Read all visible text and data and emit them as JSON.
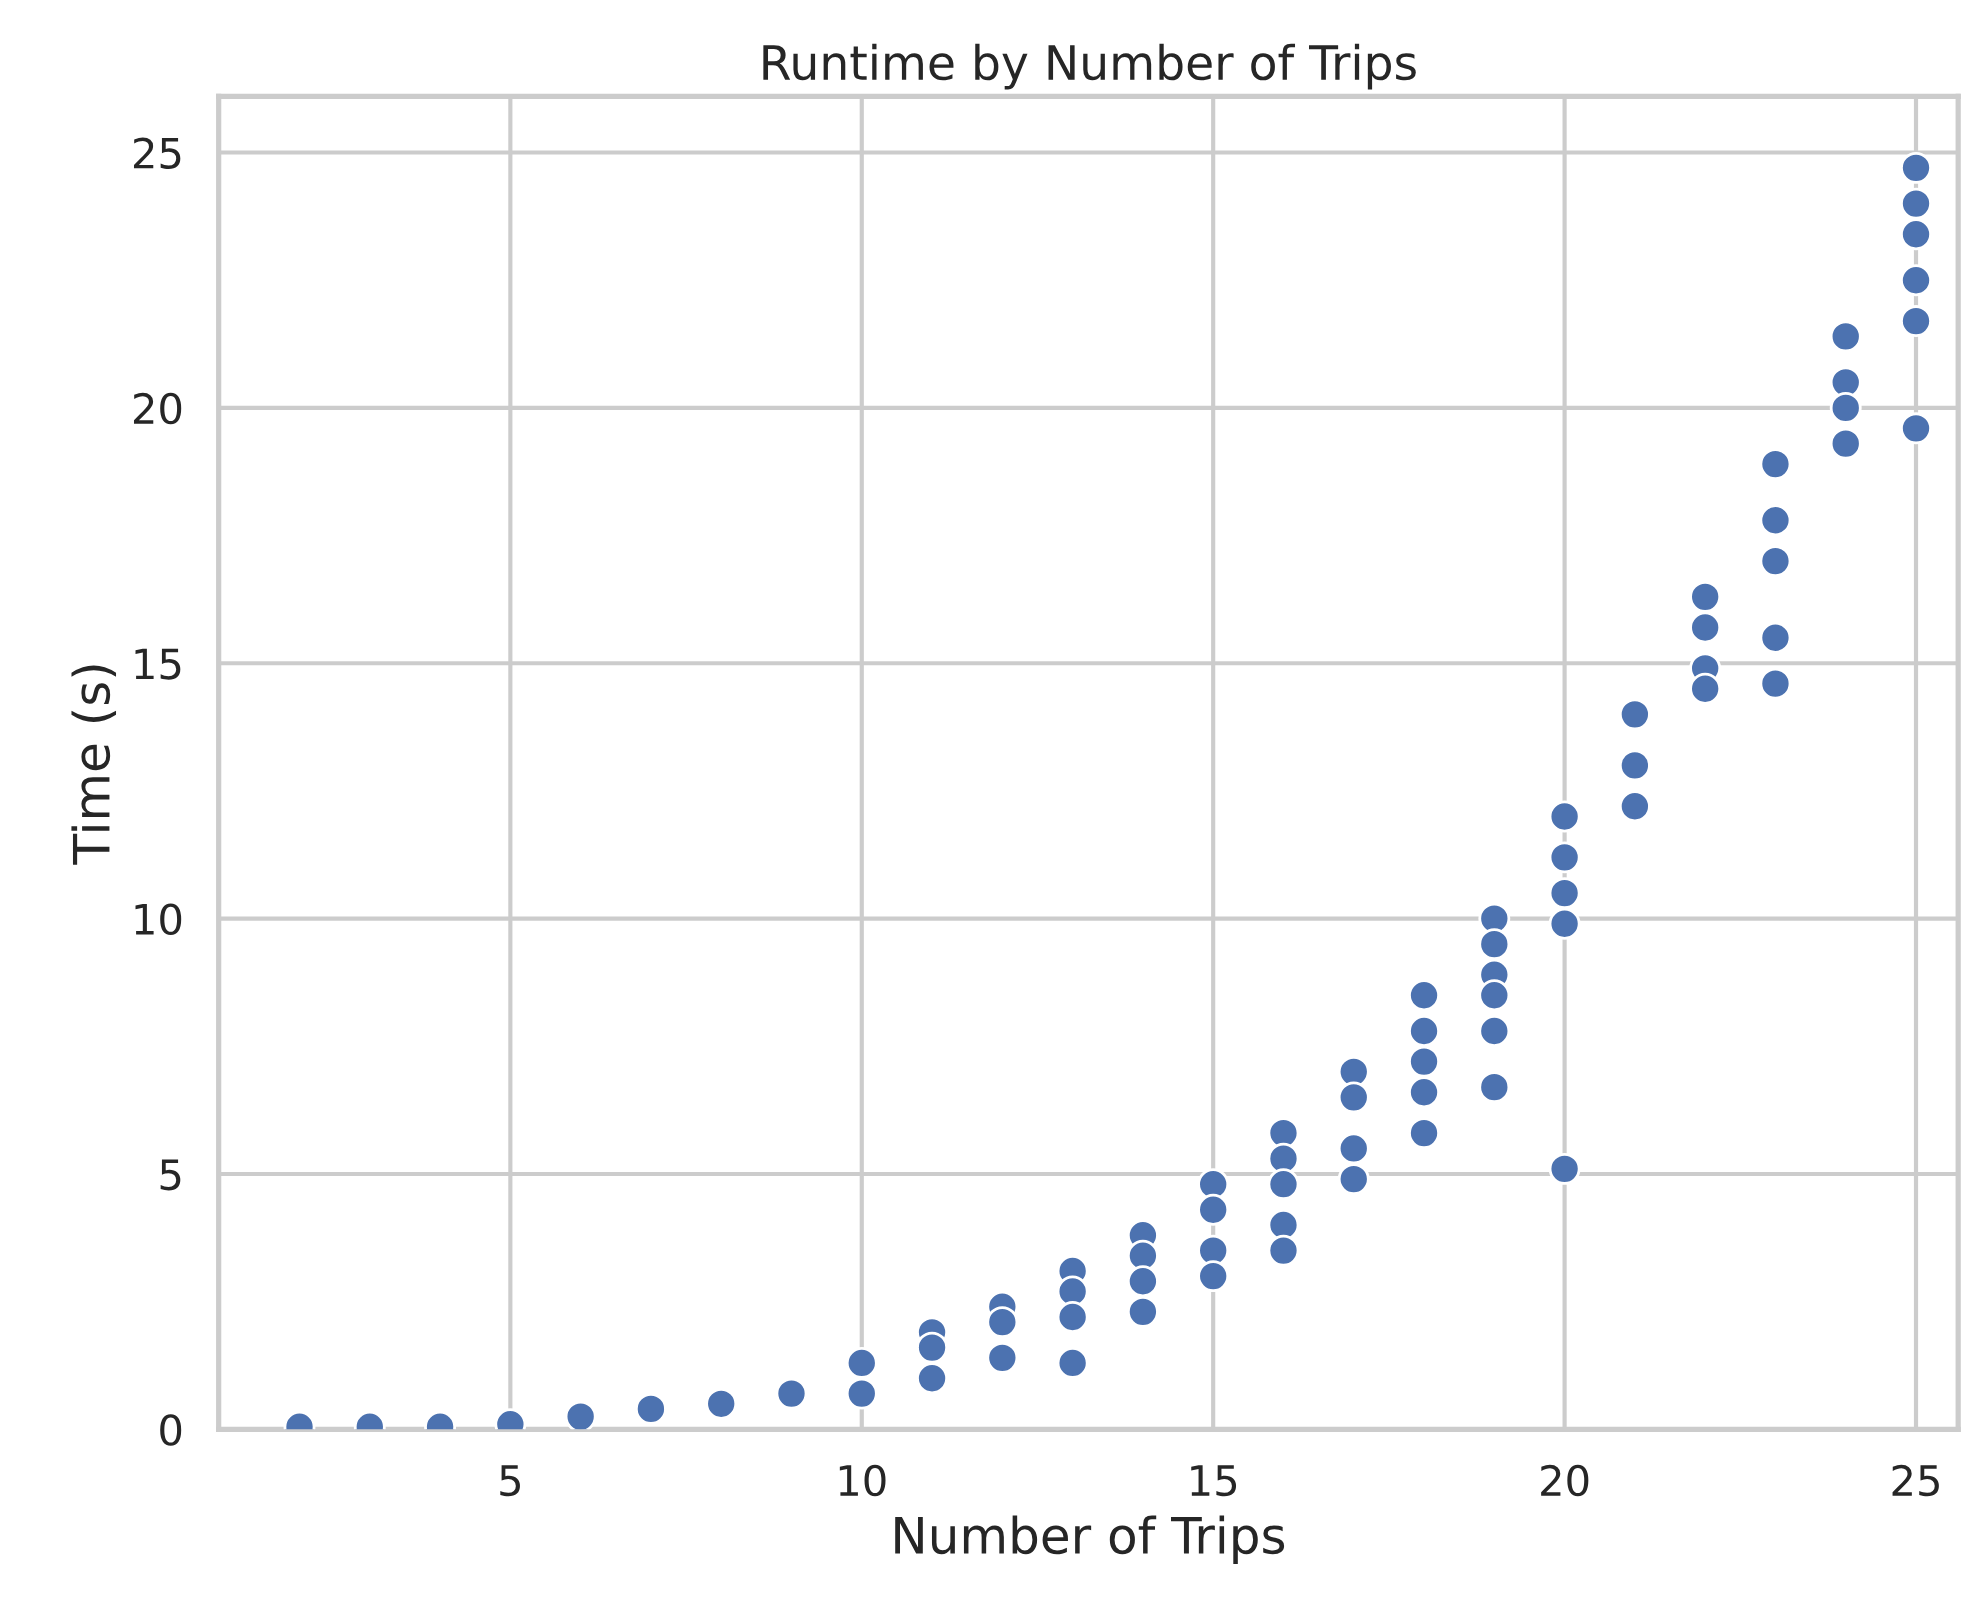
{
  "chart_data": {
    "type": "scatter",
    "title": "Runtime by Number of Trips",
    "xlabel": "Number of Trips",
    "ylabel": "Time (s)",
    "x": [
      2,
      3,
      4,
      5,
      6,
      7,
      8,
      9,
      10,
      10,
      11,
      11,
      11,
      12,
      12,
      12,
      13,
      13,
      13,
      13,
      14,
      14,
      14,
      14,
      15,
      15,
      15,
      15,
      16,
      16,
      16,
      16,
      16,
      17,
      17,
      17,
      17,
      18,
      18,
      18,
      18,
      18,
      19,
      19,
      19,
      19,
      19,
      19,
      20,
      20,
      20,
      20,
      20,
      21,
      21,
      21,
      22,
      22,
      22,
      22,
      23,
      23,
      23,
      23,
      23,
      24,
      24,
      24,
      24,
      25,
      25,
      25,
      25,
      25,
      25
    ],
    "series": [
      {
        "color": "#4c72b0",
        "values": [
          0.05,
          0.05,
          0.05,
          0.1,
          0.25,
          0.4,
          0.5,
          0.7,
          1.3,
          0.7,
          1.9,
          1.6,
          1.0,
          2.4,
          2.1,
          1.4,
          3.1,
          2.7,
          2.2,
          1.3,
          3.8,
          3.4,
          2.9,
          2.3,
          4.8,
          4.3,
          3.5,
          3.0,
          5.8,
          5.3,
          4.8,
          4.0,
          3.5,
          7.0,
          6.5,
          5.5,
          4.9,
          8.5,
          7.8,
          7.2,
          6.6,
          5.8,
          10.0,
          9.5,
          8.9,
          8.5,
          7.8,
          6.7,
          12.0,
          11.2,
          10.5,
          9.9,
          5.1,
          14.0,
          13.0,
          12.2,
          16.3,
          15.7,
          14.9,
          14.5,
          18.9,
          17.8,
          17.0,
          15.5,
          14.6,
          21.4,
          20.5,
          20.0,
          19.3,
          24.7,
          24.0,
          23.4,
          22.5,
          21.7,
          19.6
        ]
      }
    ],
    "xlim": [
      0.85,
      25.6
    ],
    "ylim": [
      0,
      26.1
    ],
    "xticks": [
      5,
      10,
      15,
      20,
      25
    ],
    "yticks": [
      0,
      5,
      10,
      15,
      20,
      25
    ],
    "grid": true,
    "marker": "circle"
  }
}
